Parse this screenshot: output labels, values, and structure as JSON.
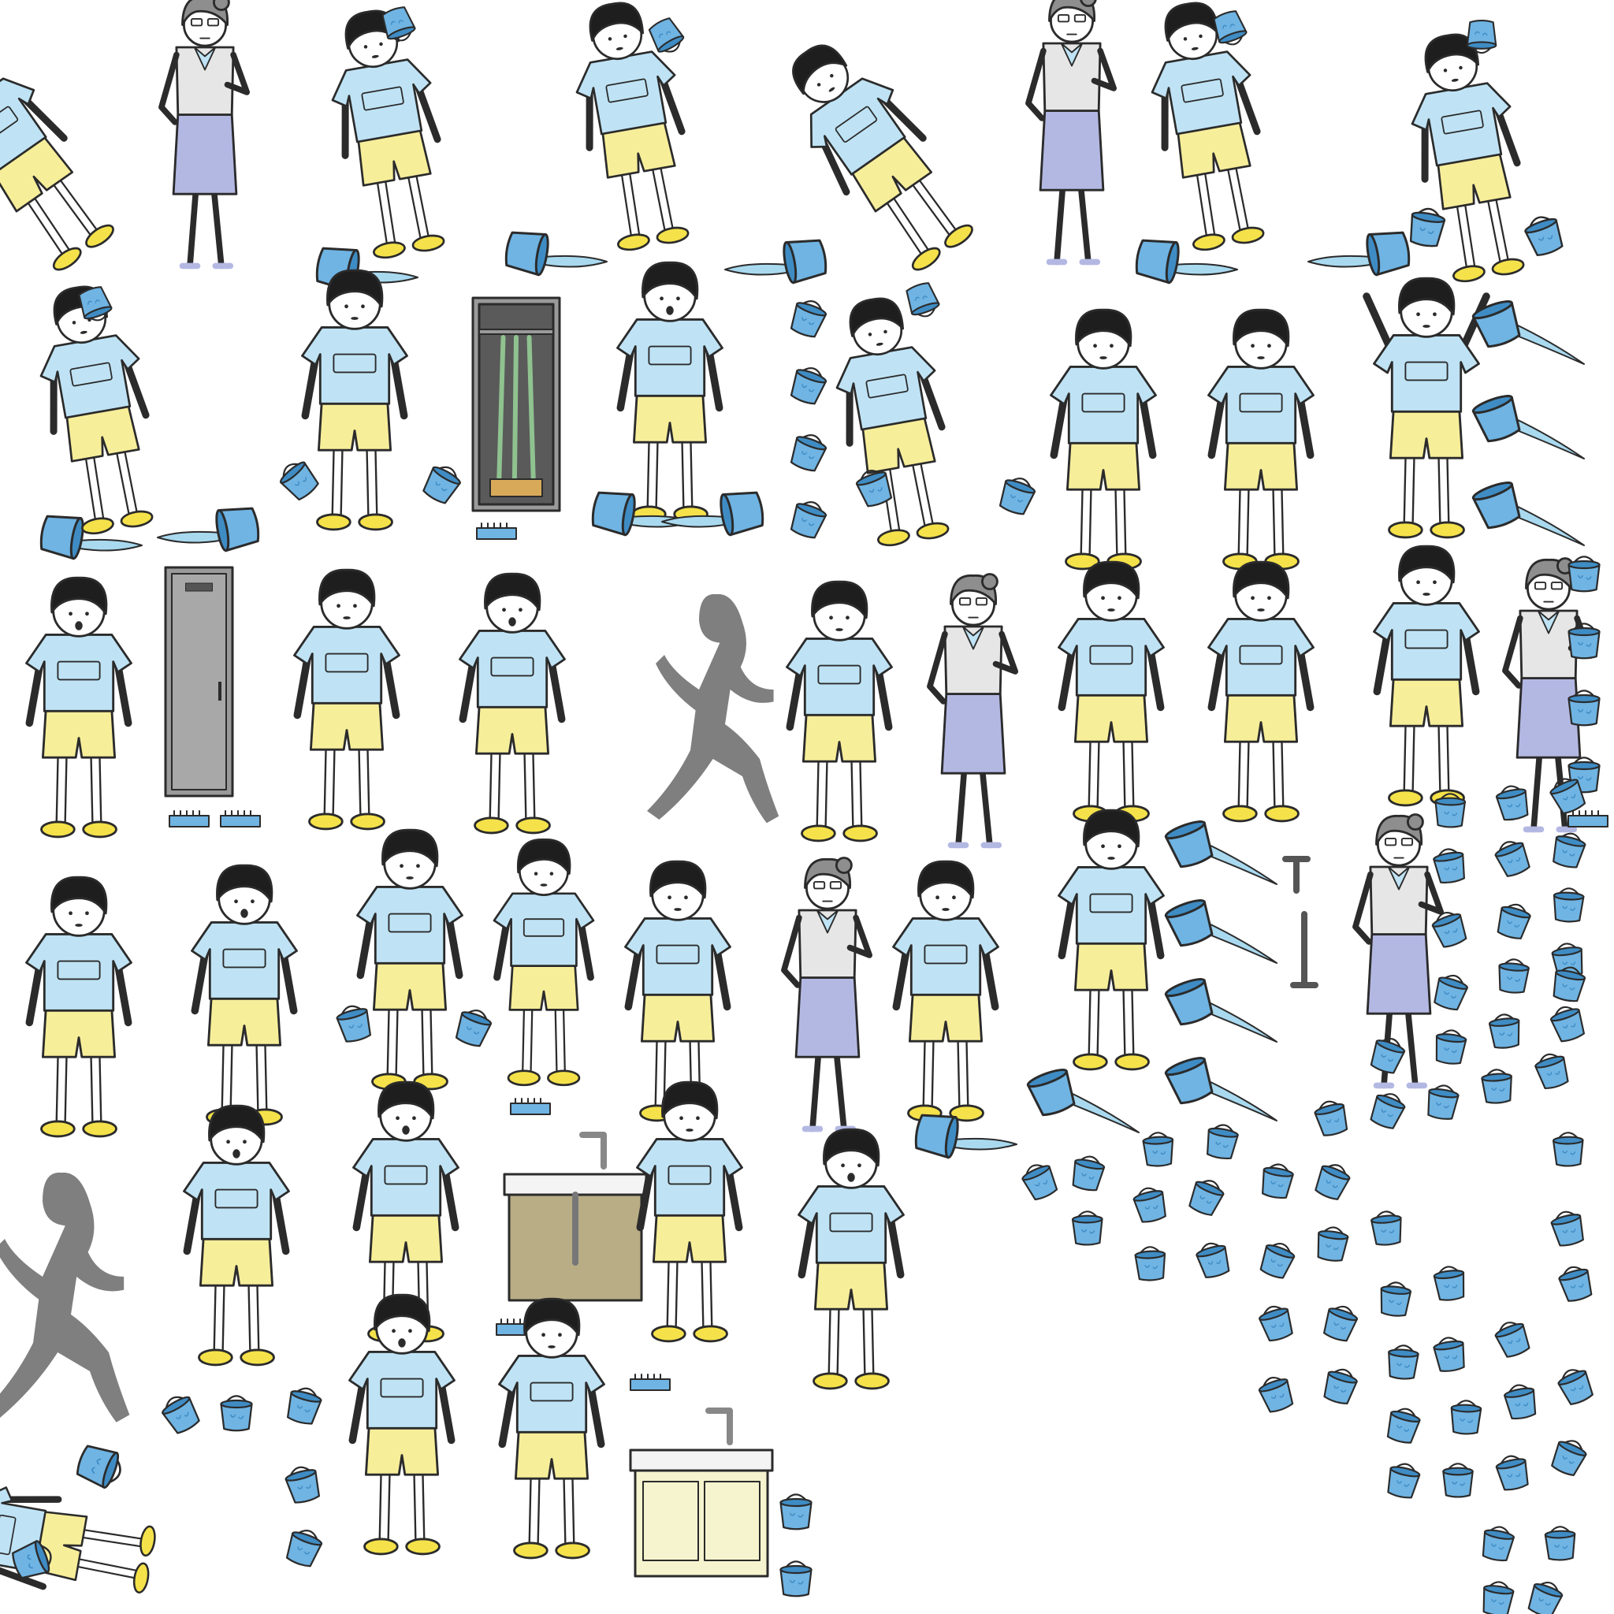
{
  "palette": {
    "outline": "#2b2b2b",
    "skin": "#ffffff",
    "hair": "#1e1e1e",
    "shirt": "#bfe3f5",
    "shorts": "#f7ee9a",
    "shoes": "#f5e24a",
    "bucket": "#6fb4e3",
    "bucket_dark": "#3f8cc4",
    "water": "#a9d9ef",
    "teacher_blouse": "#e6e6e6",
    "teacher_skirt": "#b3b8e3",
    "teacher_hair": "#8e8e8e",
    "silhouette": "#7f7f7f",
    "locker": "#9a9a9a",
    "sink_cabinet": "#b8ad85",
    "sink_cabinet_light": "#f6f4cf",
    "pipe": "#555555",
    "brush": "#6fb4e3"
  },
  "icons": {
    "boy": "student-boy-icon",
    "teacher": "teacher-icon",
    "silhouette": "running-silhouette-icon",
    "bucket": "bucket-icon",
    "bucket_spill": "spilled-bucket-icon",
    "locker": "cleaning-locker-icon",
    "sink": "sink-icon",
    "pipe": "drain-pipe-icon",
    "brush": "scrub-brush-icon"
  }
}
